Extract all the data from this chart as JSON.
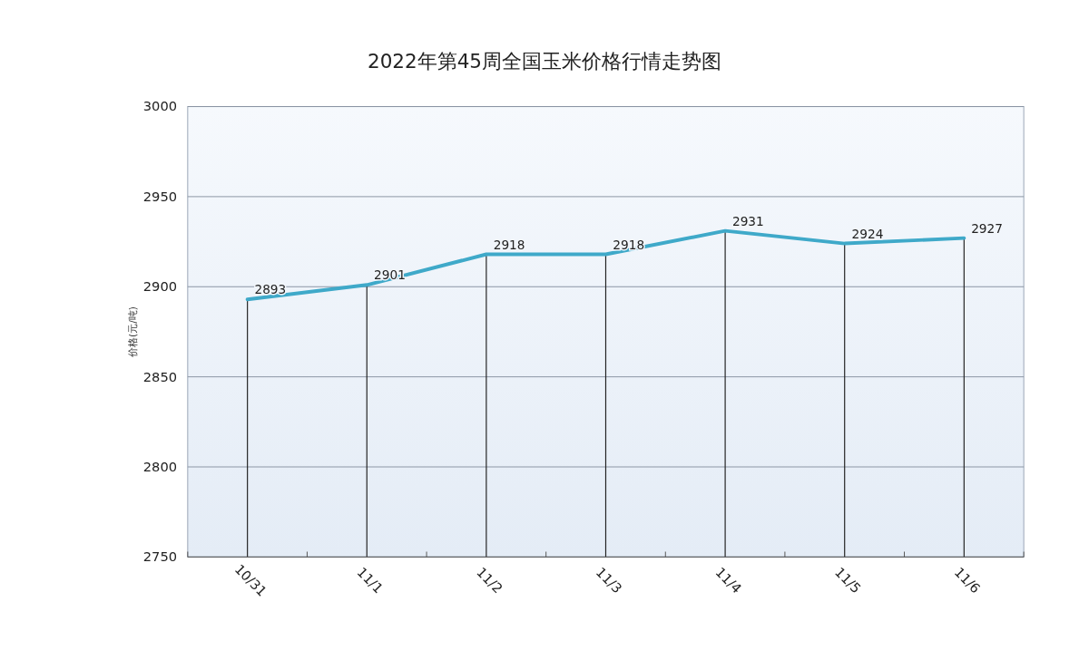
{
  "chart_data": {
    "type": "line",
    "title": "2022年第45周全国玉米价格行情走势图",
    "ylabel": "价格(元/吨)",
    "categories": [
      "10/31",
      "11/1",
      "11/2",
      "11/3",
      "11/4",
      "11/5",
      "11/6"
    ],
    "series": [
      {
        "color": "#3fa9c9",
        "values": [
          2893,
          2901,
          2918,
          2918,
          2931,
          2924,
          2927
        ]
      }
    ],
    "ylim": [
      2750,
      3000
    ],
    "yticks": [
      2750,
      2800,
      2850,
      2900,
      2950,
      3000
    ],
    "grid": true,
    "data_labels": true,
    "marker": "none",
    "line_style": "solid"
  }
}
